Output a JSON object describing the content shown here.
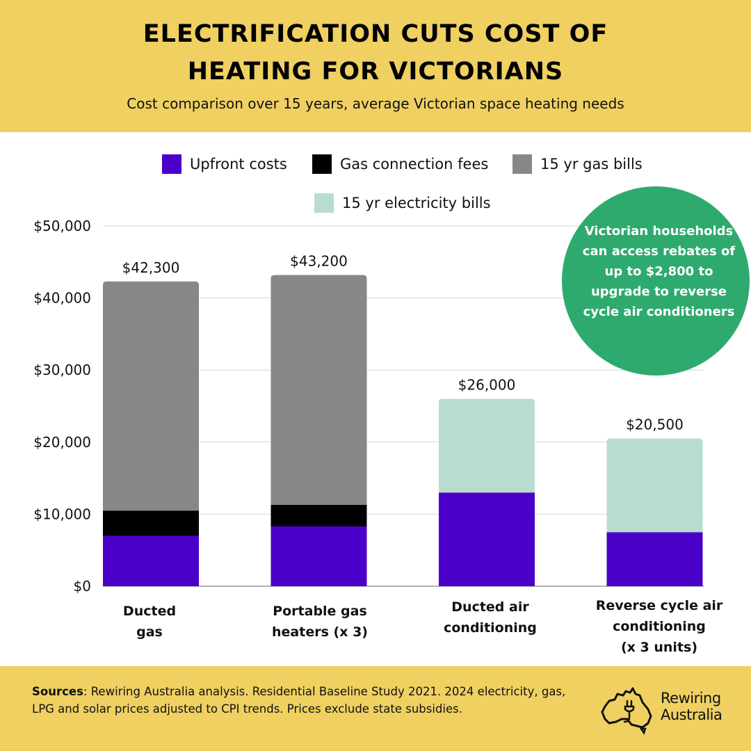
{
  "header": {
    "title_line1": "Electrification cuts cost of",
    "title_line2": "heating for Victorians",
    "subtitle": "Cost comparison over 15 years, average Victorian space heating needs"
  },
  "legend": [
    {
      "label": "Upfront costs",
      "color": "#4a00c8"
    },
    {
      "label": "Gas connection fees",
      "color": "#000000"
    },
    {
      "label": "15 yr gas bills",
      "color": "#888787"
    },
    {
      "label": "15 yr electricity bills",
      "color": "#b8dccd"
    }
  ],
  "callout": {
    "text": "Victorian households can access rebates of up to $2,800 to upgrade to reverse cycle air conditioners",
    "color": "#2eaa6f"
  },
  "chart_data": {
    "type": "bar",
    "stacked": true,
    "title": "Electrification cuts cost of heating for Victorians",
    "ylabel": "",
    "xlabel": "",
    "ylim": [
      0,
      50000
    ],
    "yticks": [
      0,
      10000,
      20000,
      30000,
      40000,
      50000
    ],
    "ytick_labels": [
      "$0",
      "$10,000",
      "$20,000",
      "$30,000",
      "$40,000",
      "$50,000"
    ],
    "categories": [
      "Ducted\ngas",
      "Portable gas\nheaters (x 3)",
      "Ducted air\nconditioning",
      "Reverse cycle air\nconditioning\n(x 3 units)"
    ],
    "series": [
      {
        "name": "Upfront costs",
        "color": "#4a00c8",
        "values": [
          7000,
          8300,
          13000,
          7500
        ]
      },
      {
        "name": "Gas connection fees",
        "color": "#000000",
        "values": [
          3500,
          3000,
          0,
          0
        ]
      },
      {
        "name": "15 yr gas bills",
        "color": "#888787",
        "values": [
          31800,
          31900,
          0,
          0
        ]
      },
      {
        "name": "15 yr electricity bills",
        "color": "#b8dccd",
        "values": [
          0,
          0,
          13000,
          13000
        ]
      }
    ],
    "totals": [
      42300,
      43200,
      26000,
      20500
    ],
    "total_labels": [
      "$42,300",
      "$43,200",
      "$26,000",
      "$20,500"
    ],
    "grid": true
  },
  "footer": {
    "sources_label": "Sources",
    "sources_text": ": Rewiring Australia analysis. Residential Baseline Study 2021. 2024 electricity, gas, LPG and solar prices adjusted to CPI trends. Prices exclude state subsidies.",
    "logo_line1": "Rewiring",
    "logo_line2": "Australia"
  }
}
